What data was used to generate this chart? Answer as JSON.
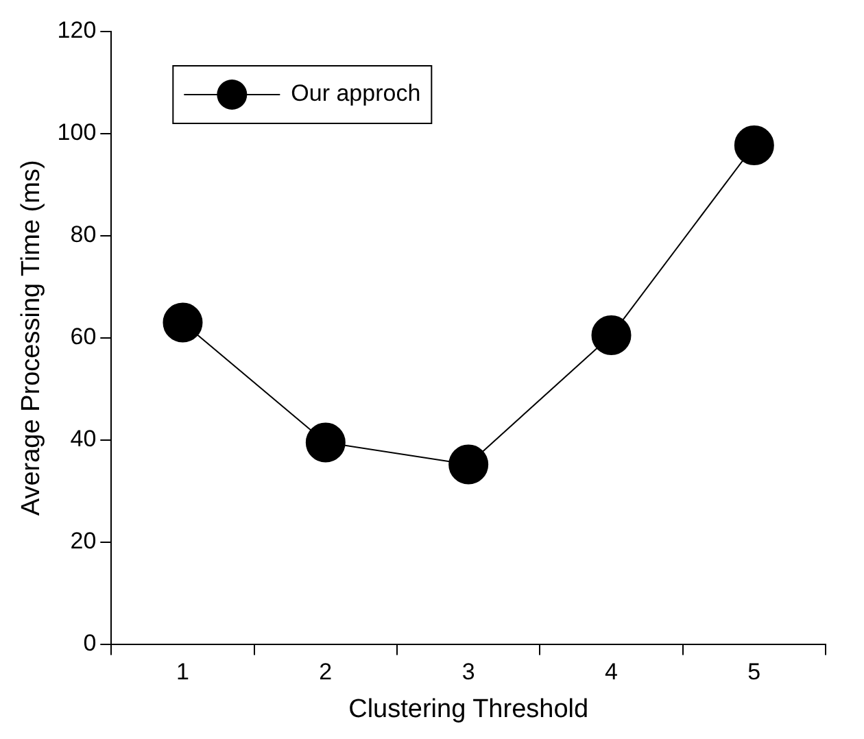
{
  "chart_data": {
    "type": "line",
    "xlabel": "Clustering Threshold",
    "ylabel": "Average Processing Time (ms)",
    "categories": [
      "1",
      "2",
      "3",
      "4",
      "5"
    ],
    "series": [
      {
        "name": "Our approch",
        "color": "#000000",
        "values": [
          63,
          39.5,
          35.2,
          60.5,
          97.7
        ]
      }
    ],
    "ylim": [
      0,
      120
    ],
    "yticks": [
      0,
      20,
      40,
      60,
      80,
      100,
      120
    ],
    "grid": false,
    "legend": "top left",
    "marker": "circle",
    "line_style": "solid"
  }
}
